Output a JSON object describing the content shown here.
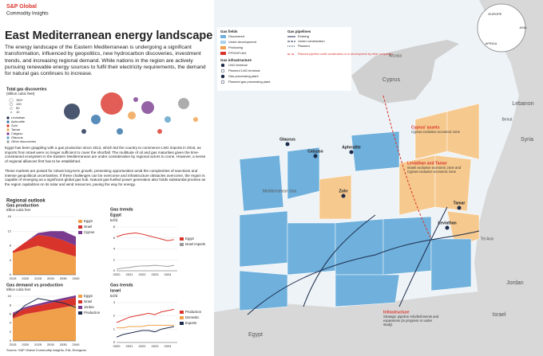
{
  "header": {
    "brand": "S&P Global",
    "sub": "Commodity Insights"
  },
  "title": "East Mediterranean energy landscape",
  "intro": "The energy landscape of the Eastern Mediterranean is undergoing a significant transformation, influenced by geopolitics, new hydrocarbon discoveries, investment trends, and increasing regional demand. While nations in the region are actively pursuing renewable energy sources to fulfil their electricity requirements, the demand for natural gas continues to increase.",
  "discoveries": {
    "title": "Total gas discoveries",
    "unit": "(trillion cubic feet)",
    "sizes": [
      "150+",
      "100",
      "50",
      "10"
    ],
    "fields": [
      "Leviathan",
      "Aphrodite",
      "Zohr",
      "Tamar",
      "Calypso",
      "Glaucus",
      "Other discoveries"
    ]
  },
  "body": [
    "Egypt has been grappling with a gas production since 2013, which led the country to commence LNG imports in 2016, as imports from Israel were no longer sufficient to cover the shortfall. The multitude of oil and gas maturities given the time-constrained ecosystem in the Eastern Mediterranean are under consideration by regional actors to come. However, a sense of regional alliances first has to be established.",
    "These markets are poised for robust long-term growth, presenting opportunities amid the complexities of sanctions and intense geopolitical uncertainties. If these challenges can be overcome and infrastructure obstacles overcome, the region is capable of emerging as a significant global gas hub. Natural gas-fuelled power generation also holds substantial promise as the region capitalizes on its solar and wind resources, paving the way for energy."
  ],
  "outlook": {
    "title": "Regional outlook"
  },
  "chart_data": [
    {
      "type": "area",
      "title": "Gas production",
      "subtitle": "trillion cubic feet",
      "x": [
        2015,
        2020,
        2025,
        2030,
        2035,
        2040
      ],
      "xlim": [
        2015,
        2040
      ],
      "xticks": [
        2015,
        2020,
        2025,
        2030,
        2035,
        2040
      ],
      "ylim": [
        0,
        16
      ],
      "yticks": [
        0,
        4,
        8,
        12,
        16
      ],
      "series": [
        {
          "name": "Egypt",
          "color": "#f0a04b",
          "values": [
            6,
            7,
            8,
            7,
            6,
            5
          ]
        },
        {
          "name": "Israel",
          "color": "#d9342b",
          "values": [
            0.5,
            2,
            3,
            3.5,
            3.5,
            3
          ]
        },
        {
          "name": "Cyprus",
          "color": "#7a3b8f",
          "values": [
            0,
            0,
            0.5,
            1.5,
            2.5,
            2.5
          ]
        }
      ]
    },
    {
      "type": "area",
      "title": "Gas demand vs production",
      "subtitle": "trillion cubic feet",
      "x": [
        2015,
        2020,
        2025,
        2030,
        2035,
        2040
      ],
      "xlim": [
        2015,
        2040
      ],
      "xticks": [
        2015,
        2020,
        2025,
        2030,
        2035,
        2040
      ],
      "ylim": [
        0,
        10
      ],
      "yticks": [
        0,
        2,
        4,
        6,
        8,
        10
      ],
      "series": [
        {
          "name": "Egypt",
          "color": "#f0a04b",
          "values": [
            5,
            6,
            6.5,
            7,
            7.5,
            8
          ]
        },
        {
          "name": "Israel",
          "color": "#d9342b",
          "values": [
            1,
            1.2,
            1.4,
            1.5,
            1.6,
            1.7
          ]
        },
        {
          "name": "Jordan",
          "color": "#7a3b8f",
          "values": [
            0.3,
            0.4,
            0.4,
            0.5,
            0.5,
            0.5
          ]
        },
        {
          "name": "Production",
          "color": "#1d2c4c",
          "style": "line",
          "values": [
            5.5,
            8,
            9.5,
            9,
            8.5,
            7.5
          ]
        }
      ]
    },
    {
      "type": "line",
      "title": "Gas trends",
      "region": "Egypt",
      "subtitle": "bcf/d",
      "x": [
        2020,
        2020.5,
        2021,
        2021.5,
        2022,
        2022.5,
        2023,
        2023.5,
        2024,
        2024.5
      ],
      "xlim": [
        2020,
        2024.75
      ],
      "xticks": [
        2020,
        2021,
        2022,
        2023,
        2024
      ],
      "ylim": [
        0,
        8
      ],
      "yticks": [
        0,
        2,
        4,
        6,
        8
      ],
      "series": [
        {
          "name": "Egypt",
          "color": "#d9342b",
          "values": [
            6.2,
            6.6,
            6.8,
            6.9,
            6.7,
            6.4,
            6.1,
            5.8,
            5.5,
            5.7
          ]
        },
        {
          "name": "Israel imports",
          "color": "#9a9a9a",
          "values": [
            0.3,
            0.5,
            0.6,
            0.8,
            0.9,
            0.9,
            1.0,
            0.9,
            0.8,
            1.0
          ]
        }
      ]
    },
    {
      "type": "line",
      "title": "Gas trends",
      "region": "Israel",
      "subtitle": "bcf/d",
      "x": [
        2020,
        2020.5,
        2021,
        2021.5,
        2022,
        2022.5,
        2023,
        2023.5,
        2024,
        2024.5
      ],
      "xlim": [
        2020,
        2024.75
      ],
      "xticks": [
        2020,
        2021,
        2022,
        2023,
        2024
      ],
      "ylim": [
        0,
        3
      ],
      "yticks": [
        0,
        1,
        2,
        3
      ],
      "series": [
        {
          "name": "Production",
          "color": "#d9342b",
          "values": [
            1.5,
            1.7,
            1.9,
            2.0,
            2.1,
            2.2,
            2.1,
            2.3,
            2.4,
            2.5
          ]
        },
        {
          "name": "Domestic",
          "color": "#f0a04b",
          "values": [
            1.1,
            1.1,
            1.2,
            1.2,
            1.2,
            1.3,
            1.3,
            1.3,
            1.3,
            1.3
          ]
        },
        {
          "name": "Exports",
          "color": "#1d2c4c",
          "values": [
            0.4,
            0.6,
            0.7,
            0.8,
            0.9,
            0.9,
            0.8,
            1.0,
            1.1,
            1.2
          ]
        }
      ]
    }
  ],
  "map": {
    "legend": {
      "fields_title": "Gas fields",
      "fields": [
        "Discovered",
        "Under development",
        "Producing",
        "FPSO/FLNG"
      ],
      "infra_title": "Gas infrastructure",
      "infra": [
        "LNG terminal",
        "Planned LNG terminal",
        "Gas processing plant",
        "Planned gas processing plant"
      ],
      "pipes_title": "Gas pipelines",
      "pipes": [
        "Existing",
        "Under construction",
        "Planned"
      ],
      "other": "Planned pipeline under construction or in development by other companies"
    },
    "places": [
      "Nicosia",
      "Cyprus",
      "Beirut",
      "Lebanon",
      "Syria",
      "Mediterranean Sea",
      "Tel Aviv",
      "Israel",
      "Jordan",
      "Egypt"
    ],
    "fields": [
      "Aphrodite",
      "Zohr",
      "Tamar",
      "Leviathan",
      "Calypso",
      "Glaucus"
    ],
    "notes": [
      {
        "title": "Cyprus' assets",
        "text": "Cyprus exclusive economic zone"
      },
      {
        "title": "Leviathan and Tamar",
        "text": "Israeli exclusive economic zone and Cyprus exclusive economic zone"
      },
      {
        "title": "Infrastructure",
        "text": "Strategic pipeline refurbishments and expansions (in progress or under study)"
      }
    ],
    "globe": [
      "EUROPE",
      "ASIA",
      "AFRICA"
    ]
  },
  "source": "Source: S&P Global Commodity Insights, EIA, Energean"
}
